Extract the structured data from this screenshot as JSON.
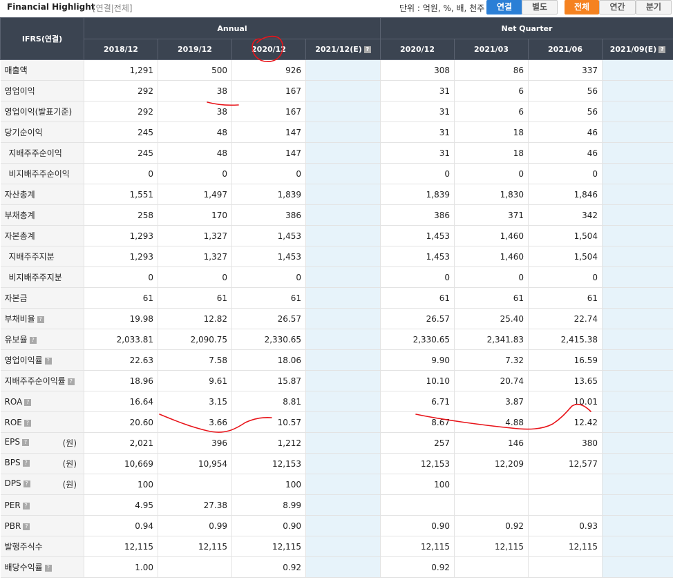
{
  "header": {
    "title": "Financial Highlight",
    "subtitle": "[연결|전체]",
    "unit_label": "단위 : 억원, %, 배, 천주",
    "buttons": [
      "연결",
      "별도",
      "전체",
      "연간",
      "분기"
    ]
  },
  "table": {
    "corner": "IFRS(연결)",
    "groups": [
      "Annual",
      "Net Quarter"
    ],
    "columns": [
      "2018/12",
      "2019/12",
      "2020/12",
      "2021/12(E)",
      "2020/12",
      "2021/03",
      "2021/06",
      "2021/09(E)"
    ],
    "rows": [
      {
        "label": "매출액",
        "indent": false,
        "help": false,
        "unit": "",
        "values": [
          "1,291",
          "500",
          "926",
          "",
          "308",
          "86",
          "337",
          ""
        ]
      },
      {
        "label": "영업이익",
        "indent": false,
        "help": false,
        "unit": "",
        "values": [
          "292",
          "38",
          "167",
          "",
          "31",
          "6",
          "56",
          ""
        ]
      },
      {
        "label": "영업이익(발표기준)",
        "indent": false,
        "help": false,
        "unit": "",
        "values": [
          "292",
          "38",
          "167",
          "",
          "31",
          "6",
          "56",
          ""
        ]
      },
      {
        "label": "당기순이익",
        "indent": false,
        "help": false,
        "unit": "",
        "values": [
          "245",
          "48",
          "147",
          "",
          "31",
          "18",
          "46",
          ""
        ]
      },
      {
        "label": "지배주주순이익",
        "indent": true,
        "help": false,
        "unit": "",
        "values": [
          "245",
          "48",
          "147",
          "",
          "31",
          "18",
          "46",
          ""
        ]
      },
      {
        "label": "비지배주주순이익",
        "indent": true,
        "help": false,
        "unit": "",
        "values": [
          "0",
          "0",
          "0",
          "",
          "0",
          "0",
          "0",
          ""
        ]
      },
      {
        "label": "자산총계",
        "indent": false,
        "help": false,
        "unit": "",
        "values": [
          "1,551",
          "1,497",
          "1,839",
          "",
          "1,839",
          "1,830",
          "1,846",
          ""
        ]
      },
      {
        "label": "부채총계",
        "indent": false,
        "help": false,
        "unit": "",
        "values": [
          "258",
          "170",
          "386",
          "",
          "386",
          "371",
          "342",
          ""
        ]
      },
      {
        "label": "자본총계",
        "indent": false,
        "help": false,
        "unit": "",
        "values": [
          "1,293",
          "1,327",
          "1,453",
          "",
          "1,453",
          "1,460",
          "1,504",
          ""
        ]
      },
      {
        "label": "지배주주지분",
        "indent": true,
        "help": false,
        "unit": "",
        "values": [
          "1,293",
          "1,327",
          "1,453",
          "",
          "1,453",
          "1,460",
          "1,504",
          ""
        ]
      },
      {
        "label": "비지배주주지분",
        "indent": true,
        "help": false,
        "unit": "",
        "values": [
          "0",
          "0",
          "0",
          "",
          "0",
          "0",
          "0",
          ""
        ]
      },
      {
        "label": "자본금",
        "indent": false,
        "help": false,
        "unit": "",
        "values": [
          "61",
          "61",
          "61",
          "",
          "61",
          "61",
          "61",
          ""
        ]
      },
      {
        "label": "부채비율",
        "indent": false,
        "help": true,
        "unit": "",
        "values": [
          "19.98",
          "12.82",
          "26.57",
          "",
          "26.57",
          "25.40",
          "22.74",
          ""
        ]
      },
      {
        "label": "유보율",
        "indent": false,
        "help": true,
        "unit": "",
        "values": [
          "2,033.81",
          "2,090.75",
          "2,330.65",
          "",
          "2,330.65",
          "2,341.83",
          "2,415.38",
          ""
        ]
      },
      {
        "label": "영업이익률",
        "indent": false,
        "help": true,
        "unit": "",
        "values": [
          "22.63",
          "7.58",
          "18.06",
          "",
          "9.90",
          "7.32",
          "16.59",
          ""
        ]
      },
      {
        "label": "지배주주순이익률",
        "indent": false,
        "help": true,
        "unit": "",
        "values": [
          "18.96",
          "9.61",
          "15.87",
          "",
          "10.10",
          "20.74",
          "13.65",
          ""
        ]
      },
      {
        "label": "ROA",
        "indent": false,
        "help": true,
        "unit": "",
        "values": [
          "16.64",
          "3.15",
          "8.81",
          "",
          "6.71",
          "3.87",
          "10.01",
          ""
        ]
      },
      {
        "label": "ROE",
        "indent": false,
        "help": true,
        "unit": "",
        "values": [
          "20.60",
          "3.66",
          "10.57",
          "",
          "8.67",
          "4.88",
          "12.42",
          ""
        ]
      },
      {
        "label": "EPS",
        "indent": false,
        "help": true,
        "unit": "(원)",
        "values": [
          "2,021",
          "396",
          "1,212",
          "",
          "257",
          "146",
          "380",
          ""
        ]
      },
      {
        "label": "BPS",
        "indent": false,
        "help": true,
        "unit": "(원)",
        "values": [
          "10,669",
          "10,954",
          "12,153",
          "",
          "12,153",
          "12,209",
          "12,577",
          ""
        ]
      },
      {
        "label": "DPS",
        "indent": false,
        "help": true,
        "unit": "(원)",
        "values": [
          "100",
          "",
          "100",
          "",
          "100",
          "",
          "",
          ""
        ]
      },
      {
        "label": "PER",
        "indent": false,
        "help": true,
        "unit": "",
        "values": [
          "4.95",
          "27.38",
          "8.99",
          "",
          "",
          "",
          "",
          ""
        ]
      },
      {
        "label": "PBR",
        "indent": false,
        "help": true,
        "unit": "",
        "values": [
          "0.94",
          "0.99",
          "0.90",
          "",
          "0.90",
          "0.92",
          "0.93",
          ""
        ]
      },
      {
        "label": "발행주식수",
        "indent": false,
        "help": false,
        "unit": "",
        "values": [
          "12,115",
          "12,115",
          "12,115",
          "",
          "12,115",
          "12,115",
          "12,115",
          ""
        ]
      },
      {
        "label": "배당수익률",
        "indent": false,
        "help": true,
        "unit": "",
        "values": [
          "1.00",
          "",
          "0.92",
          "",
          "0.92",
          "",
          "",
          ""
        ]
      }
    ]
  },
  "help_icon": "?",
  "annotation_color": "#e8141a"
}
